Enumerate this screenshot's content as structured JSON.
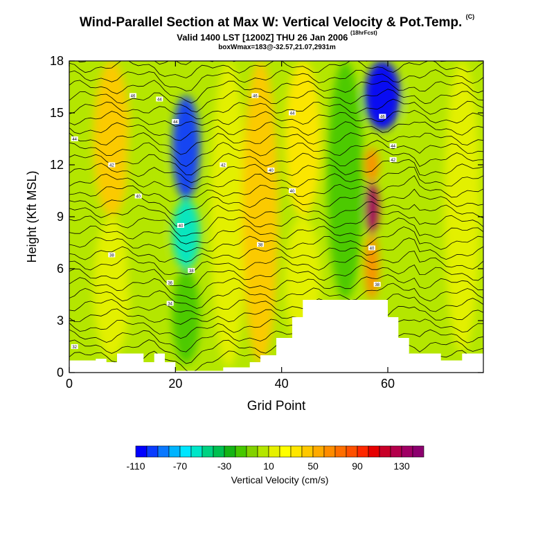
{
  "header": {
    "title": "Wind-Parallel Section at Max W: Vertical Velocity & Pot.Temp.",
    "title_mark": "(C)",
    "subtitle": "Valid 1400 LST [1200Z] THU 26 Jan 2006",
    "subtitle_mark": "(18hrFcst)",
    "subtitle2": "boxWmax=183@-32.57,21.07,2931m"
  },
  "chart_data": {
    "type": "heatmap",
    "title": "Wind-Parallel Section at Max W: Vertical Velocity & Pot.Temp.",
    "xlabel": "Grid Point",
    "ylabel": "Height (Kft MSL)",
    "xlim": [
      0,
      78
    ],
    "ylim": [
      0,
      18
    ],
    "xticks": [
      0,
      20,
      40,
      60
    ],
    "yticks": [
      0,
      3,
      6,
      9,
      12,
      15,
      18
    ],
    "colorbar": {
      "label": "Vertical Velocity (cm/s)",
      "tick_labels": [
        -110,
        -70,
        -30,
        10,
        50,
        90,
        130
      ],
      "range": [
        -110,
        150
      ],
      "step": 10,
      "colors": [
        "#0000ff",
        "#0a3cff",
        "#0a78ff",
        "#00b4ff",
        "#00e6ff",
        "#00e6c8",
        "#00d282",
        "#00c050",
        "#14b414",
        "#46c800",
        "#82d200",
        "#b4e600",
        "#e6f000",
        "#ffff00",
        "#ffe600",
        "#ffc800",
        "#ffaa00",
        "#ff8c00",
        "#ff6e00",
        "#ff5000",
        "#ff2800",
        "#e60000",
        "#c80028",
        "#b4004b",
        "#a00064",
        "#8c006e"
      ]
    },
    "vertical_velocity_cells": {
      "columns": [
        {
          "x": 2,
          "rows": [
            {
              "y0": 0.8,
              "y1": 18,
              "w": 0
            }
          ]
        },
        {
          "x": 8,
          "rows": [
            {
              "y0": 0.8,
              "y1": 9,
              "w": 10
            },
            {
              "y0": 9,
              "y1": 18,
              "w": 45
            }
          ]
        },
        {
          "x": 14,
          "rows": [
            {
              "y0": 0.6,
              "y1": 18,
              "w": 0
            }
          ]
        },
        {
          "x": 22,
          "rows": [
            {
              "y0": 0.5,
              "y1": 6,
              "w": -20
            },
            {
              "y0": 6,
              "y1": 10,
              "w": -60
            },
            {
              "y0": 10,
              "y1": 16,
              "w": -100
            }
          ]
        },
        {
          "x": 30,
          "rows": [
            {
              "y0": 0.3,
              "y1": 18,
              "w": 10
            }
          ]
        },
        {
          "x": 36,
          "rows": [
            {
              "y0": 0.5,
              "y1": 18,
              "w": 40
            }
          ]
        },
        {
          "x": 44,
          "rows": [
            {
              "y0": 1.5,
              "y1": 9,
              "w": 10
            },
            {
              "y0": 9,
              "y1": 18,
              "w": 30
            }
          ]
        },
        {
          "x": 52,
          "rows": [
            {
              "y0": 4.2,
              "y1": 18,
              "w": -20
            }
          ]
        },
        {
          "x": 57,
          "rows": [
            {
              "y0": 4.2,
              "y1": 8,
              "w": 60
            },
            {
              "y0": 8,
              "y1": 11,
              "w": 130
            },
            {
              "y0": 11,
              "y1": 13,
              "w": 60
            }
          ]
        },
        {
          "x": 59,
          "rows": [
            {
              "y0": 14,
              "y1": 18,
              "w": -110
            }
          ]
        },
        {
          "x": 66,
          "rows": [
            {
              "y0": 1.5,
              "y1": 18,
              "w": 0
            }
          ]
        },
        {
          "x": 74,
          "rows": [
            {
              "y0": 1.2,
              "y1": 18,
              "w": 10
            }
          ]
        }
      ]
    },
    "terrain_kft": [
      [
        0,
        0.7
      ],
      [
        5,
        0.7
      ],
      [
        5,
        0.8
      ],
      [
        7,
        0.8
      ],
      [
        7,
        0.6
      ],
      [
        9,
        0.6
      ],
      [
        9,
        1.1
      ],
      [
        14,
        1.1
      ],
      [
        14,
        0.6
      ],
      [
        16,
        0.6
      ],
      [
        16,
        1.1
      ],
      [
        18,
        1.1
      ],
      [
        18,
        0.6
      ],
      [
        20,
        0.6
      ],
      [
        20,
        0.1
      ],
      [
        29,
        0.1
      ],
      [
        29,
        0.3
      ],
      [
        34,
        0.3
      ],
      [
        34,
        0.6
      ],
      [
        36,
        0.6
      ],
      [
        36,
        1.0
      ],
      [
        39,
        1.0
      ],
      [
        39,
        2.0
      ],
      [
        42,
        2.0
      ],
      [
        42,
        3.2
      ],
      [
        44,
        3.2
      ],
      [
        44,
        4.2
      ],
      [
        54,
        4.2
      ],
      [
        54,
        4.2
      ],
      [
        60,
        4.2
      ],
      [
        60,
        3.2
      ],
      [
        62,
        3.2
      ],
      [
        62,
        2.0
      ],
      [
        64,
        2.0
      ],
      [
        64,
        1.1
      ],
      [
        70,
        1.1
      ],
      [
        70,
        0.7
      ],
      [
        74,
        0.7
      ],
      [
        74,
        1.1
      ],
      [
        78,
        1.1
      ]
    ],
    "theta_contour_labels": [
      {
        "x": 12,
        "y": 16,
        "text": "46"
      },
      {
        "x": 17,
        "y": 15.8,
        "text": "44"
      },
      {
        "x": 1,
        "y": 13.5,
        "text": "44"
      },
      {
        "x": 20,
        "y": 14.5,
        "text": "44"
      },
      {
        "x": 35,
        "y": 16,
        "text": "46"
      },
      {
        "x": 42,
        "y": 15,
        "text": "44"
      },
      {
        "x": 8,
        "y": 12,
        "text": "42"
      },
      {
        "x": 29,
        "y": 12,
        "text": "42"
      },
      {
        "x": 38,
        "y": 11.7,
        "text": "40"
      },
      {
        "x": 42,
        "y": 10.5,
        "text": "40"
      },
      {
        "x": 13,
        "y": 10.2,
        "text": "40"
      },
      {
        "x": 21,
        "y": 8.5,
        "text": "40"
      },
      {
        "x": 8,
        "y": 6.8,
        "text": "38"
      },
      {
        "x": 36,
        "y": 7.4,
        "text": "38"
      },
      {
        "x": 23,
        "y": 5.9,
        "text": "38"
      },
      {
        "x": 19,
        "y": 5.2,
        "text": "36"
      },
      {
        "x": 19,
        "y": 4.0,
        "text": "34"
      },
      {
        "x": 1,
        "y": 1.5,
        "text": "32"
      },
      {
        "x": 57,
        "y": 7.2,
        "text": "40"
      },
      {
        "x": 58,
        "y": 5.1,
        "text": "38"
      },
      {
        "x": 59,
        "y": 14.8,
        "text": "46"
      },
      {
        "x": 61,
        "y": 13.1,
        "text": "44"
      },
      {
        "x": 61,
        "y": 12.3,
        "text": "42"
      }
    ]
  }
}
